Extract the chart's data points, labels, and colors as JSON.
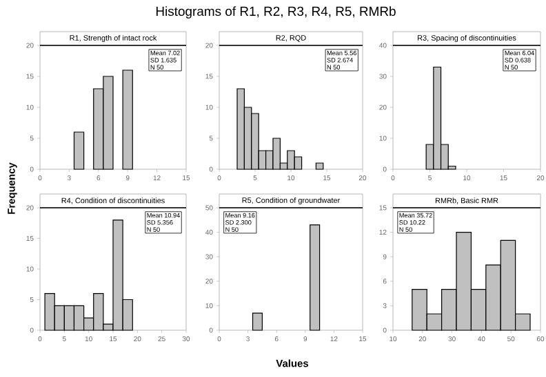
{
  "chart_data": [
    {
      "type": "histogram",
      "title": "R1, Strength of intact rock",
      "ylabel": "Frequency",
      "color": "#c0c0c0",
      "bins": [
        3.5,
        4.5,
        5.5,
        6.5,
        7.5,
        8.5,
        9.5
      ],
      "values": [
        6,
        0,
        13,
        15,
        0,
        16
      ],
      "xlim": [
        0,
        15
      ],
      "xticks": [
        0,
        3,
        6,
        9,
        12,
        15
      ],
      "ylim": [
        0,
        20
      ],
      "yticks": [
        0,
        5,
        10,
        15,
        20
      ],
      "annotations": [
        "Mean 7.02",
        "SD 1.635",
        "N 50",
        "Histograms of R1, R2, R3, R4, R5, RMRb"
      ]
    },
    {
      "type": "histogram",
      "title": "R2, RQD",
      "color": "#c0c0c0",
      "bins": [
        2.5,
        3.5,
        4.5,
        5.5,
        6.5,
        7.5,
        8.5,
        9.5,
        10.5,
        11.5,
        12.5,
        13.5,
        14.5
      ],
      "values": [
        13,
        10,
        9,
        3,
        3,
        5,
        1,
        3,
        2,
        0,
        0,
        1
      ],
      "xlim": [
        0,
        20
      ],
      "xticks": [
        0,
        5,
        10,
        15,
        20
      ],
      "ylim": [
        0,
        20
      ],
      "yticks": [
        0,
        5,
        10,
        15,
        20
      ],
      "annotations": [
        "Mean 5.56",
        "SD 2.674",
        "N 50"
      ]
    },
    {
      "type": "histogram",
      "title": "R3, Spacing of discontinuities",
      "color": "#c0c0c0",
      "bins": [
        4.5,
        5.5,
        6.5,
        7.5,
        8.5
      ],
      "values": [
        8,
        33,
        8,
        1
      ],
      "xlim": [
        0,
        20
      ],
      "xticks": [
        0,
        5,
        10,
        15,
        20
      ],
      "ylim": [
        0,
        40
      ],
      "yticks": [
        0,
        10,
        20,
        30,
        40
      ],
      "annotations": [
        "Mean 6.04",
        "SD 0.638",
        "N 50"
      ]
    },
    {
      "type": "histogram",
      "title": "R4, Condition of discontinuities",
      "color": "#c0c0c0",
      "bins": [
        1,
        3,
        5,
        7,
        9,
        11,
        13,
        15,
        17,
        19
      ],
      "values": [
        6,
        4,
        4,
        4,
        2,
        6,
        1,
        18,
        5
      ],
      "xlim": [
        0,
        30
      ],
      "xticks": [
        0,
        5,
        10,
        15,
        20,
        25,
        30
      ],
      "ylim": [
        0,
        20
      ],
      "yticks": [
        0,
        5,
        10,
        15,
        20
      ],
      "annotations": [
        "Mean 10.94",
        "SD 5.356",
        "N 50"
      ]
    },
    {
      "type": "histogram",
      "title": "R5, Condition of groundwater",
      "xlabel": "Values",
      "color": "#c0c0c0",
      "bins": [
        3.5,
        4.5,
        5.5,
        6.5,
        7.5,
        8.5,
        9.5,
        10.5
      ],
      "values": [
        7,
        0,
        0,
        0,
        0,
        0,
        43
      ],
      "xlim": [
        0,
        15
      ],
      "xticks": [
        0,
        3,
        6,
        9,
        12,
        15
      ],
      "ylim": [
        0,
        50
      ],
      "yticks": [
        0,
        10,
        20,
        30,
        40,
        50
      ],
      "annotations": [
        "Mean 9.16",
        "SD 2.300",
        "N 50"
      ]
    },
    {
      "type": "histogram",
      "title": "RMRb, Basic RMR",
      "color": "#c0c0c0",
      "bins": [
        16.5,
        21.5,
        26.5,
        31.5,
        36.5,
        41.5,
        46.5,
        51.5,
        56.5
      ],
      "values": [
        5,
        2,
        5,
        12,
        5,
        8,
        11,
        2
      ],
      "xlim": [
        10,
        60
      ],
      "xticks": [
        10,
        20,
        30,
        40,
        50,
        60
      ],
      "ylim": [
        0,
        15
      ],
      "yticks": [
        0,
        3,
        6,
        9,
        12,
        15
      ],
      "annotations": [
        "Mean 35.72",
        "SD 10.22",
        "N 50"
      ]
    }
  ]
}
